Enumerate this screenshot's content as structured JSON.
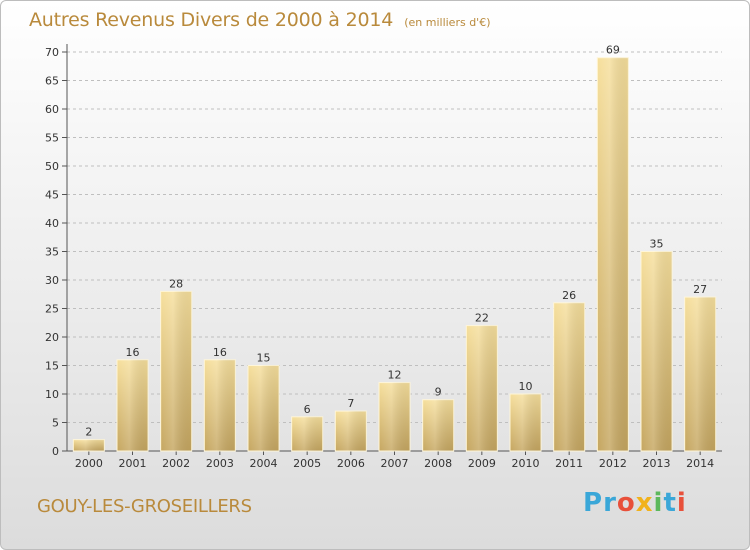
{
  "header": {
    "title": "Autres Revenus Divers de 2000 à 2014",
    "subtitle": "(en milliers d'€)"
  },
  "footer": {
    "location": "GOUY-LES-GROSEILLERS",
    "brand": "Proxiti"
  },
  "colors": {
    "title": "#b98a3c",
    "bar_light": "#f5dc95",
    "bar_dark": "#c8a964",
    "grid": "#bfbfbf"
  },
  "chart_data": {
    "type": "bar",
    "title": "Autres Revenus Divers de 2000 à 2014",
    "subtitle": "(en milliers d'€)",
    "xlabel": "",
    "ylabel": "",
    "ylim": [
      0,
      70
    ],
    "yticks": [
      0,
      5,
      10,
      15,
      20,
      25,
      30,
      35,
      40,
      45,
      50,
      55,
      60,
      65,
      70
    ],
    "grid": "horizontal dashed",
    "categories": [
      "2000",
      "2001",
      "2002",
      "2003",
      "2004",
      "2005",
      "2006",
      "2007",
      "2008",
      "2009",
      "2010",
      "2011",
      "2012",
      "2013",
      "2014"
    ],
    "values": [
      2,
      16,
      28,
      16,
      15,
      6,
      7,
      12,
      9,
      22,
      10,
      26,
      69,
      35,
      27
    ]
  }
}
